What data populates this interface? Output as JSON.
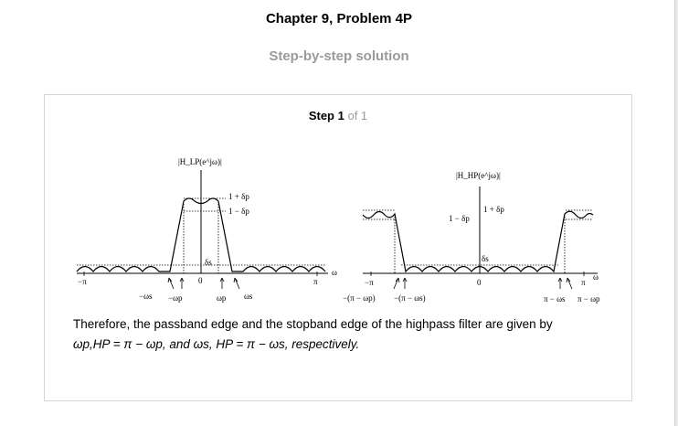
{
  "header": {
    "title": "Chapter 9, Problem 4P",
    "subtitle": "Step-by-step solution"
  },
  "step": {
    "label": "Step 1",
    "of_text": "of 1"
  },
  "figure": {
    "left": {
      "axis_label": "|H_LP(e^jω)|",
      "top_label_1": "1 + δp",
      "top_label_2": "1 − δp",
      "delta_s": "δs",
      "tick_neg_pi": "−π",
      "tick_zero": "0",
      "tick_pi": "π",
      "omega": "ω",
      "neg_ws": "−ωs",
      "neg_wp": "−ωp",
      "wp": "ωp",
      "ws": "ωs"
    },
    "right": {
      "axis_label": "|H_HP(e^jω)|",
      "top_label_1": "1 + δp",
      "top_label_2": "1 − δp",
      "delta_s": "δs",
      "tick_neg_pi": "−π",
      "tick_zero": "0",
      "tick_pi": "π",
      "omega": "ω",
      "neg_pi_wp": "−(π − ωp)",
      "neg_pi_ws": "−(π − ωs)",
      "pi_ws": "π − ωs",
      "pi_wp": "π − ωp"
    }
  },
  "explanation": {
    "line1": "Therefore, the passband edge and the stopband edge of the highpass filter are given by",
    "line2": "ωp,HP = π − ωp, and ωs, HP = π − ωs, respectively."
  }
}
